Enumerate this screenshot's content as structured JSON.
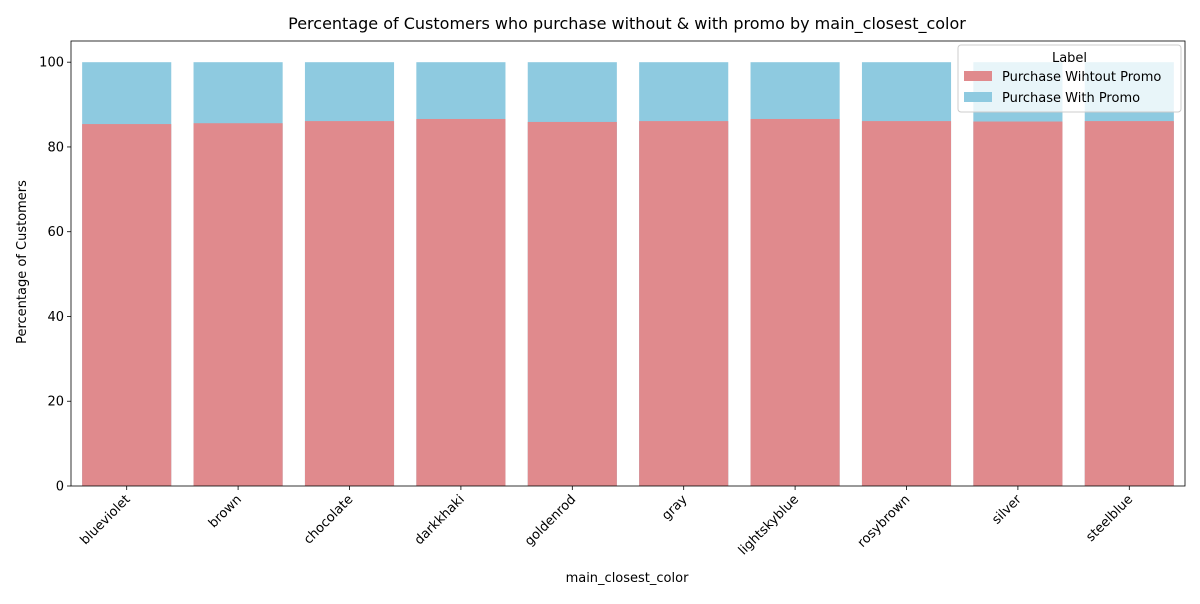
{
  "chart_data": {
    "type": "bar",
    "stacked_overlay": true,
    "title": "Percentage of Customers who purchase without & with promo by main_closest_color",
    "xlabel": "main_closest_color",
    "ylabel": "Percentage of Customers",
    "ylim": [
      0,
      105
    ],
    "yticks": [
      0,
      20,
      40,
      60,
      80,
      100
    ],
    "grid": false,
    "legend": {
      "title": "Label",
      "placement": "top-right"
    },
    "categories": [
      "blueviolet",
      "brown",
      "chocolate",
      "darkkhaki",
      "goldenrod",
      "gray",
      "lightskyblue",
      "rosybrown",
      "silver",
      "steelblue"
    ],
    "series": [
      {
        "name": "Purchase With Promo",
        "color": "#8ecae0",
        "values": [
          100,
          100,
          100,
          100,
          100,
          100,
          100,
          100,
          100,
          100
        ]
      },
      {
        "name": "Purchase Wihtout Promo",
        "color": "#e08a8d",
        "values": [
          85.4,
          85.6,
          86.1,
          86.6,
          85.9,
          86.1,
          86.6,
          86.1,
          86.0,
          86.1
        ]
      }
    ],
    "legend_order": [
      "Purchase Wihtout Promo",
      "Purchase With Promo"
    ]
  }
}
